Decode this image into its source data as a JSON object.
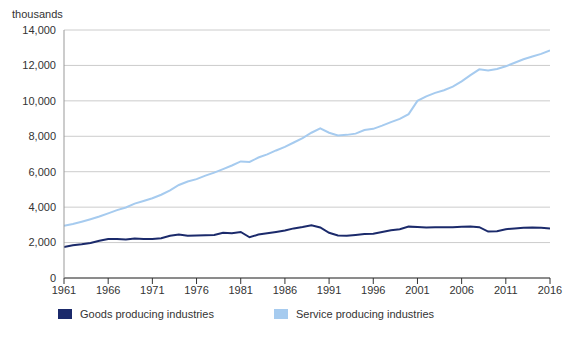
{
  "chart_data": {
    "type": "line",
    "y_label": "thousands",
    "x": [
      1961,
      1962,
      1963,
      1964,
      1965,
      1966,
      1967,
      1968,
      1969,
      1970,
      1971,
      1972,
      1973,
      1974,
      1975,
      1976,
      1977,
      1978,
      1979,
      1980,
      1981,
      1982,
      1983,
      1984,
      1985,
      1986,
      1987,
      1988,
      1989,
      1990,
      1991,
      1992,
      1993,
      1994,
      1995,
      1996,
      1997,
      1998,
      1999,
      2000,
      2001,
      2002,
      2003,
      2004,
      2005,
      2006,
      2007,
      2008,
      2009,
      2010,
      2011,
      2012,
      2013,
      2014,
      2015,
      2016
    ],
    "series": [
      {
        "name": "Goods producing industries",
        "color": "#1b2a6b",
        "values": [
          1750,
          1850,
          1900,
          1980,
          2100,
          2200,
          2200,
          2180,
          2230,
          2200,
          2200,
          2250,
          2380,
          2450,
          2380,
          2400,
          2420,
          2430,
          2550,
          2530,
          2600,
          2300,
          2450,
          2520,
          2600,
          2680,
          2800,
          2880,
          2980,
          2850,
          2550,
          2400,
          2380,
          2430,
          2480,
          2500,
          2600,
          2700,
          2750,
          2900,
          2880,
          2850,
          2860,
          2870,
          2860,
          2900,
          2910,
          2870,
          2620,
          2640,
          2750,
          2800,
          2830,
          2850,
          2830,
          2800
        ]
      },
      {
        "name": "Service producing industries",
        "color": "#a6cbef",
        "values": [
          2950,
          3050,
          3180,
          3320,
          3470,
          3650,
          3830,
          3980,
          4200,
          4350,
          4500,
          4700,
          4950,
          5250,
          5450,
          5580,
          5780,
          5950,
          6150,
          6350,
          6580,
          6550,
          6800,
          6980,
          7200,
          7400,
          7650,
          7900,
          8200,
          8450,
          8200,
          8050,
          8080,
          8150,
          8350,
          8420,
          8600,
          8800,
          8980,
          9250,
          10000,
          10250,
          10450,
          10600,
          10800,
          11100,
          11450,
          11780,
          11720,
          11800,
          11950,
          12150,
          12350,
          12500,
          12650,
          12850
        ]
      }
    ],
    "xlim": [
      1961,
      2016
    ],
    "xticks": [
      1961,
      1966,
      1971,
      1976,
      1981,
      1986,
      1991,
      1996,
      2001,
      2006,
      2011,
      2016
    ],
    "ylim": [
      0,
      14000
    ],
    "yticks": [
      0,
      {
        "value": 2000,
        "label": "2,000"
      },
      {
        "value": 4000,
        "label": "4,000"
      },
      {
        "value": 6000,
        "label": "6,000"
      },
      {
        "value": 8000,
        "label": "8,000"
      },
      {
        "value": 10000,
        "label": "10,000"
      },
      {
        "value": 12000,
        "label": "12,000"
      },
      {
        "value": 14000,
        "label": "14,000"
      }
    ],
    "grid": true,
    "legend": "bottom-left"
  }
}
